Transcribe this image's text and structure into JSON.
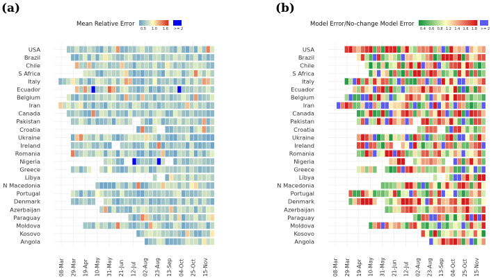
{
  "chart_data": [
    {
      "type": "heatmap",
      "panel_label": "(a)",
      "legend_title": "Mean Relative Error",
      "legend_ticks": [
        "0.5",
        "1.0",
        "1.6",
        ">= 2"
      ],
      "colors": {
        "low": "#6aa2c8",
        "mid": "#ffffbf",
        "high": "#d7301f",
        "over": "#0000ee"
      },
      "countries": [
        "USA",
        "Brazil",
        "Chile",
        "S Africa",
        "Italy",
        "Ecuador",
        "Belgium",
        "Iran",
        "Canada",
        "Pakistan",
        "Croatia",
        "Ukraine",
        "Ireland",
        "Romania",
        "Nigeria",
        "Greece",
        "Libya",
        "N Macedonia",
        "Portugal",
        "Denmark",
        "Azerbaijan",
        "Paraguay",
        "Moldova",
        "Kosovo",
        "Angola"
      ],
      "x_ticks": [
        "08-Mar",
        "29-Mar",
        "19-Apr",
        "10-May",
        "31-May",
        "21-Jun",
        "12-Jul",
        "02-Aug",
        "23-Aug",
        "13-Sep",
        "04-Oct",
        "25-Oct",
        "15-Nov"
      ],
      "n_weeks": 38,
      "starts": [
        2,
        3,
        4,
        6,
        0,
        4,
        2,
        0,
        2,
        3,
        19,
        3,
        3,
        3,
        11,
        3,
        23,
        9,
        3,
        3,
        10,
        17,
        6,
        19,
        21
      ],
      "gaps": [
        [],
        [],
        [],
        [],
        [],
        [],
        [],
        [],
        [],
        [
          [
            18,
            20
          ]
        ],
        [
          [
            24,
            26
          ]
        ],
        [],
        [
          [
            13,
            15
          ]
        ],
        [],
        [
          [
            16,
            18
          ],
          [
            26,
            28
          ]
        ],
        [
          [
            8,
            10
          ]
        ],
        [
          [
            24,
            26
          ]
        ],
        [],
        [],
        [
          [
            9,
            11
          ]
        ],
        [],
        [],
        [],
        [],
        []
      ],
      "special": {
        "5": {
          "8": 2.3,
          "12": 1.6,
          "13": 1.3,
          "29": 2.3
        },
        "14": {
          "18": 2.3,
          "24": 2.3
        },
        "13": {
          "3": 1.5
        },
        "7": {
          "0": 1.2
        }
      }
    },
    {
      "type": "heatmap",
      "panel_label": "(b)",
      "legend_title": "Model Error/No-change Model Error",
      "legend_ticks": [
        "0.4",
        "0.6",
        "0.8",
        "1.2",
        "1.4",
        "1.6",
        "1.8",
        ">= 2"
      ],
      "colors": {
        "low": "#1a9641",
        "mid": "#ffffbf",
        "high": "#d7191c",
        "over": "#5b5bef"
      },
      "countries": [
        "USA",
        "Brazil",
        "Chile",
        "S Africa",
        "Italy",
        "Ecuador",
        "Belgium",
        "Iran",
        "Canada",
        "Pakistan",
        "Croatia",
        "Ukraine",
        "Ireland",
        "Romania",
        "Nigeria",
        "Greece",
        "Libya",
        "N Macedonia",
        "Portugal",
        "Denmark",
        "Azerbaijan",
        "Paraguay",
        "Moldova",
        "Kosovo",
        "Angola"
      ],
      "x_ticks": [
        "08-Mar",
        "29-Mar",
        "19-Apr",
        "10-May",
        "31-May",
        "21-Jun",
        "12-Jul",
        "02-Aug",
        "23-Aug",
        "13-Sep",
        "04-Oct",
        "25-Oct",
        "15-Nov"
      ],
      "n_weeks": 38,
      "starts": [
        3,
        6,
        8,
        9,
        3,
        5,
        3,
        1,
        6,
        6,
        21,
        6,
        6,
        6,
        14,
        6,
        25,
        12,
        4,
        4,
        13,
        20,
        9,
        22,
        24
      ],
      "gaps": [
        [],
        [],
        [],
        [],
        [],
        [],
        [],
        [],
        [],
        [
          [
            20,
            22
          ]
        ],
        [
          [
            26,
            28
          ]
        ],
        [],
        [
          [
            15,
            17
          ]
        ],
        [],
        [
          [
            18,
            20
          ],
          [
            28,
            30
          ]
        ],
        [
          [
            11,
            13
          ]
        ],
        [
          [
            26,
            28
          ]
        ],
        [],
        [],
        [
          [
            11,
            13
          ]
        ],
        [],
        [],
        [],
        [],
        []
      ],
      "special": {}
    }
  ]
}
